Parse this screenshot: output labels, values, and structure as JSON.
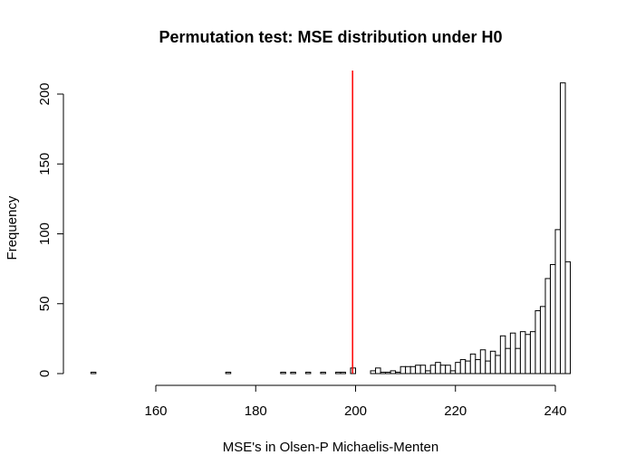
{
  "chart_data": {
    "type": "bar",
    "subtype": "histogram",
    "title": "Permutation test: MSE distribution under H0",
    "xlabel": "MSE's in Olsen-P Michaelis-Menten",
    "ylabel": "Frequency",
    "xlim": [
      146.5,
      243.5
    ],
    "ylim": [
      0,
      210
    ],
    "x_ticks": [
      160,
      180,
      200,
      220,
      240
    ],
    "y_ticks": [
      0,
      50,
      100,
      150,
      200
    ],
    "bin_width": 1,
    "bins_start": 147,
    "counts": [
      1,
      0,
      0,
      0,
      0,
      0,
      0,
      0,
      0,
      0,
      0,
      0,
      0,
      0,
      0,
      0,
      0,
      0,
      0,
      0,
      0,
      0,
      0,
      0,
      0,
      0,
      0,
      1,
      0,
      0,
      0,
      0,
      0,
      0,
      0,
      0,
      0,
      0,
      1,
      0,
      1,
      0,
      0,
      1,
      0,
      0,
      1,
      0,
      0,
      1,
      1,
      0,
      4,
      0,
      0,
      0,
      2,
      4,
      1,
      1,
      2,
      1,
      5,
      5,
      5,
      6,
      6,
      2,
      6,
      8,
      6,
      6,
      2,
      8,
      10,
      9,
      14,
      10,
      17,
      9,
      16,
      13,
      27,
      18,
      29,
      18,
      30,
      28,
      30,
      45,
      48,
      68,
      78,
      103,
      208,
      80
    ],
    "highlight_line": {
      "x": 199.4,
      "color": "#ff0000"
    },
    "grid": false
  }
}
